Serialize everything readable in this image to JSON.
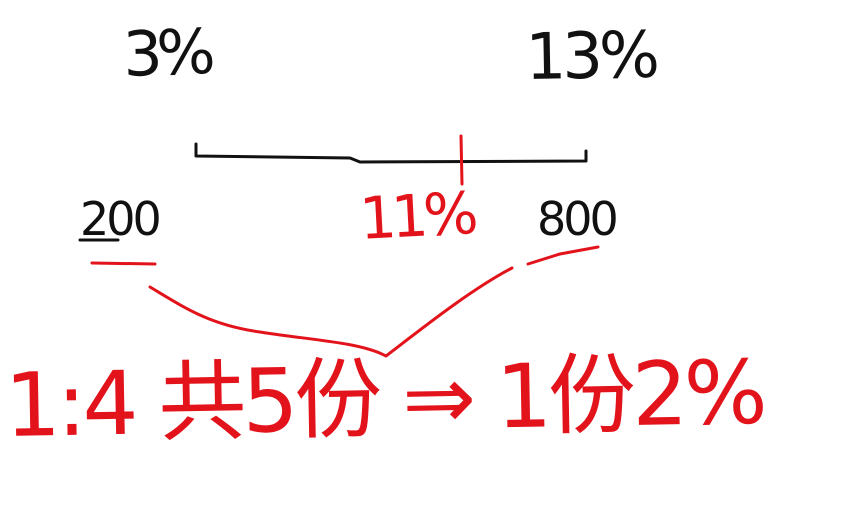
{
  "sketch": {
    "left_pct": "3%",
    "right_pct": "13%",
    "left_amount": "200",
    "mid_pct": "11%",
    "right_amount": "800",
    "note": "1:4 共5份 ⇒ 1份2%",
    "ink": {
      "black": "#111111",
      "red": "#e3131b"
    }
  }
}
